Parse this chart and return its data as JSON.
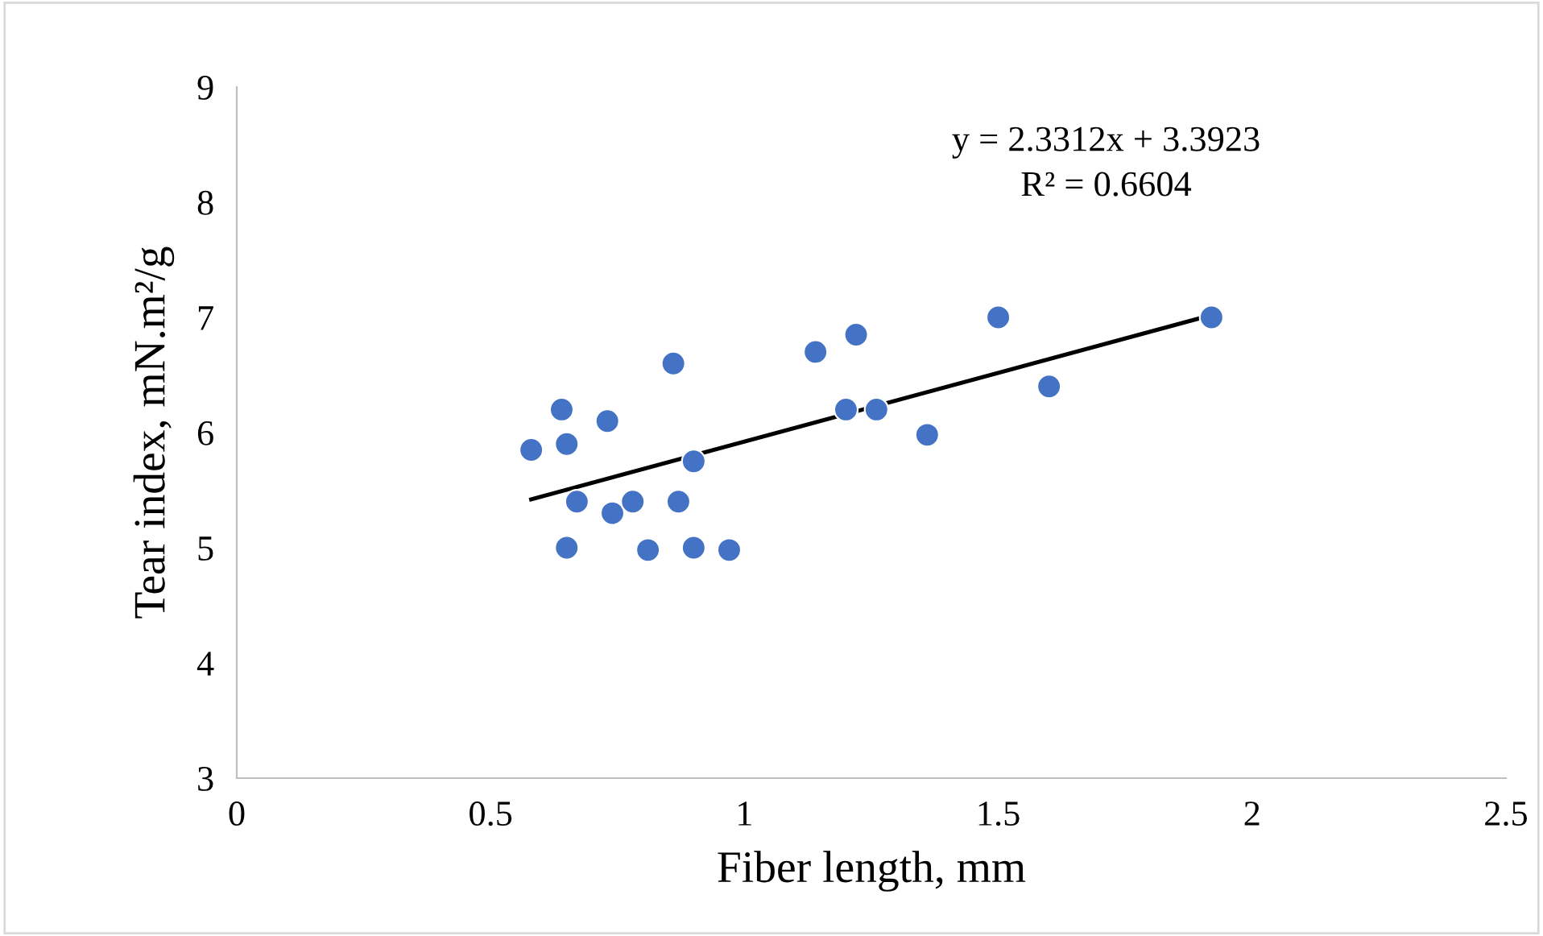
{
  "chart_data": {
    "type": "scatter",
    "xlabel": "Fiber length, mm",
    "ylabel": "Tear index, mN.m²/g",
    "xlim": [
      0,
      2.5
    ],
    "xticks": [
      0,
      0.5,
      1,
      1.5,
      2,
      2.5
    ],
    "ylim": [
      3,
      9
    ],
    "yticks": [
      3,
      4,
      5,
      6,
      7,
      8,
      9
    ],
    "grid": false,
    "legend": false,
    "annotations": [
      "y = 2.3312x + 3.3923",
      "R² = 0.6604"
    ],
    "series": [
      {
        "marker": "circle",
        "color": "#4472c4",
        "x": [
          0.58,
          0.64,
          0.65,
          0.73,
          0.67,
          0.65,
          0.74,
          0.78,
          0.86,
          0.87,
          0.9,
          0.81,
          0.9,
          0.97,
          1.14,
          1.22,
          1.2,
          1.26,
          1.36,
          1.5,
          1.6,
          1.92
        ],
        "values": [
          5.85,
          6.2,
          5.9,
          6.1,
          5.4,
          5.0,
          5.3,
          5.4,
          6.6,
          5.4,
          5.75,
          4.98,
          5.0,
          4.98,
          6.7,
          6.85,
          6.2,
          6.2,
          5.98,
          7.0,
          6.4,
          7.0
        ]
      },
      {
        "type": "line",
        "marker": "none",
        "color": "#000000",
        "line_style": "solid",
        "x": [
          0.58,
          1.92
        ],
        "values": [
          5.42,
          7.02
        ]
      }
    ]
  }
}
